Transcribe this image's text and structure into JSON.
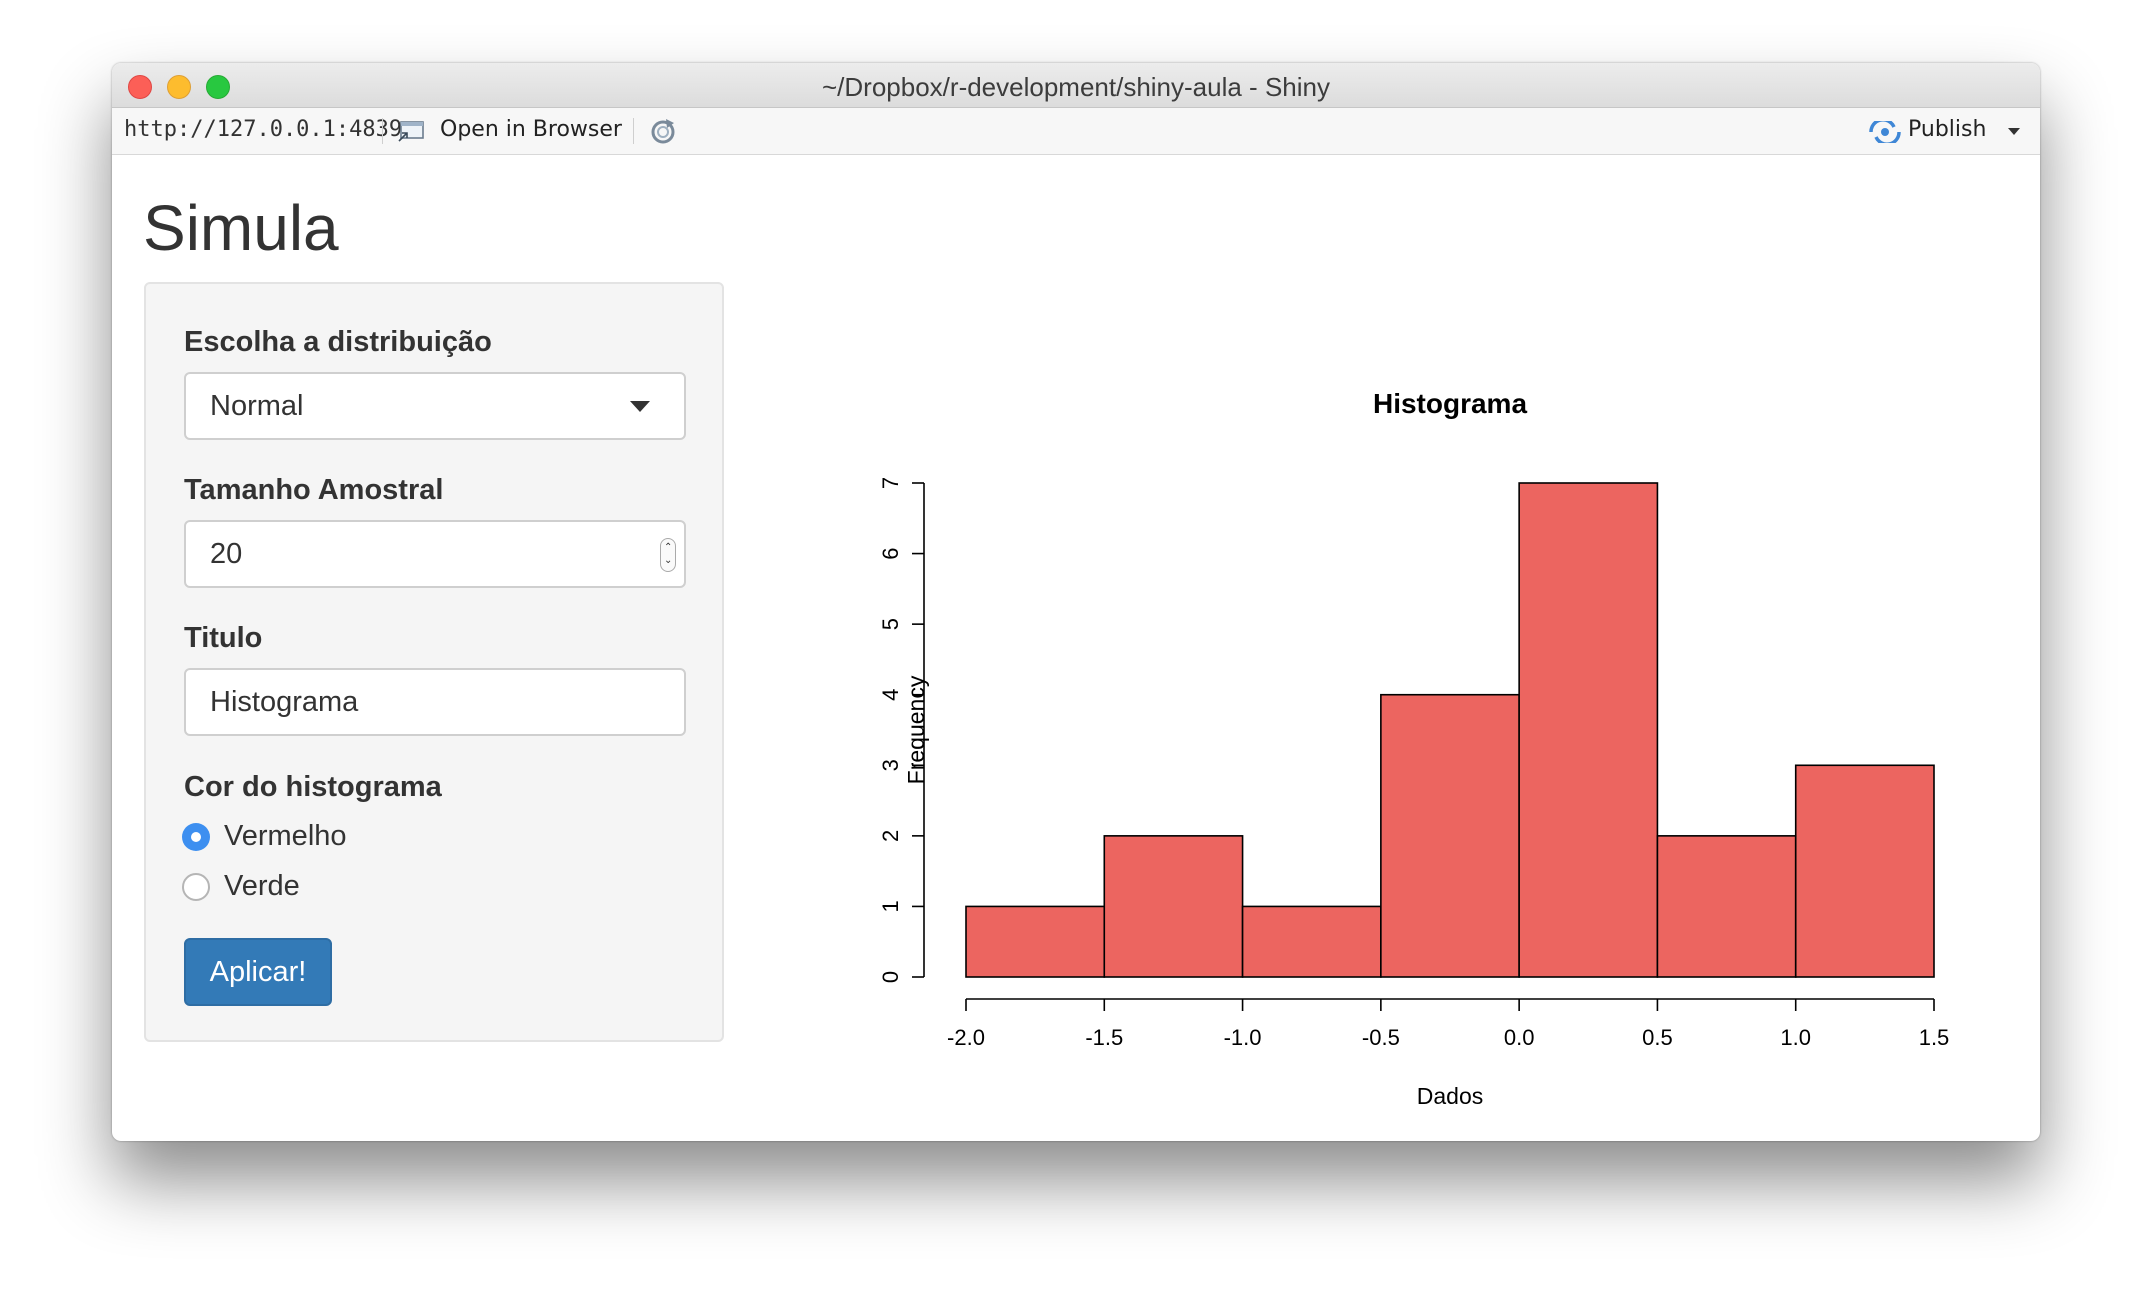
{
  "window": {
    "title": "~/Dropbox/r-development/shiny-aula - Shiny"
  },
  "toolbar": {
    "url": "http://127.0.0.1:4839",
    "open_browser_label": "Open in Browser",
    "publish_label": "Publish",
    "icons": [
      "open-in-browser-icon",
      "refresh-icon",
      "publish-icon"
    ]
  },
  "app": {
    "title": "Simula"
  },
  "sidebar": {
    "distribution": {
      "label": "Escolha a distribuição",
      "value": "Normal"
    },
    "sample_size": {
      "label": "Tamanho Amostral",
      "value": "20"
    },
    "title_field": {
      "label": "Titulo",
      "value": "Histograma"
    },
    "color": {
      "label": "Cor do histograma",
      "options": [
        {
          "label": "Vermelho",
          "checked": true
        },
        {
          "label": "Verde",
          "checked": false
        }
      ]
    },
    "apply_label": "Aplicar!"
  },
  "colors": {
    "bar_fill": "#ec6560",
    "button": "#337ab7",
    "radio_selected": "#3d8ff0"
  },
  "chart_data": {
    "type": "bar",
    "title": "Histograma",
    "xlabel": "Dados",
    "ylabel": "Frequency",
    "bins": [
      {
        "from": -2.0,
        "to": -1.5,
        "count": 1
      },
      {
        "from": -1.5,
        "to": -1.0,
        "count": 2
      },
      {
        "from": -1.0,
        "to": -0.5,
        "count": 1
      },
      {
        "from": -0.5,
        "to": 0.0,
        "count": 4
      },
      {
        "from": 0.0,
        "to": 0.5,
        "count": 7
      },
      {
        "from": 0.5,
        "to": 1.0,
        "count": 2
      },
      {
        "from": 1.0,
        "to": 1.5,
        "count": 3
      }
    ],
    "xticks": [
      "-2.0",
      "-1.5",
      "-1.0",
      "-0.5",
      "0.0",
      "0.5",
      "1.0",
      "1.5"
    ],
    "yticks": [
      "0",
      "1",
      "2",
      "3",
      "4",
      "5",
      "6",
      "7"
    ],
    "xlim": [
      -2.0,
      1.5
    ],
    "ylim": [
      0,
      7
    ],
    "grid": false
  }
}
